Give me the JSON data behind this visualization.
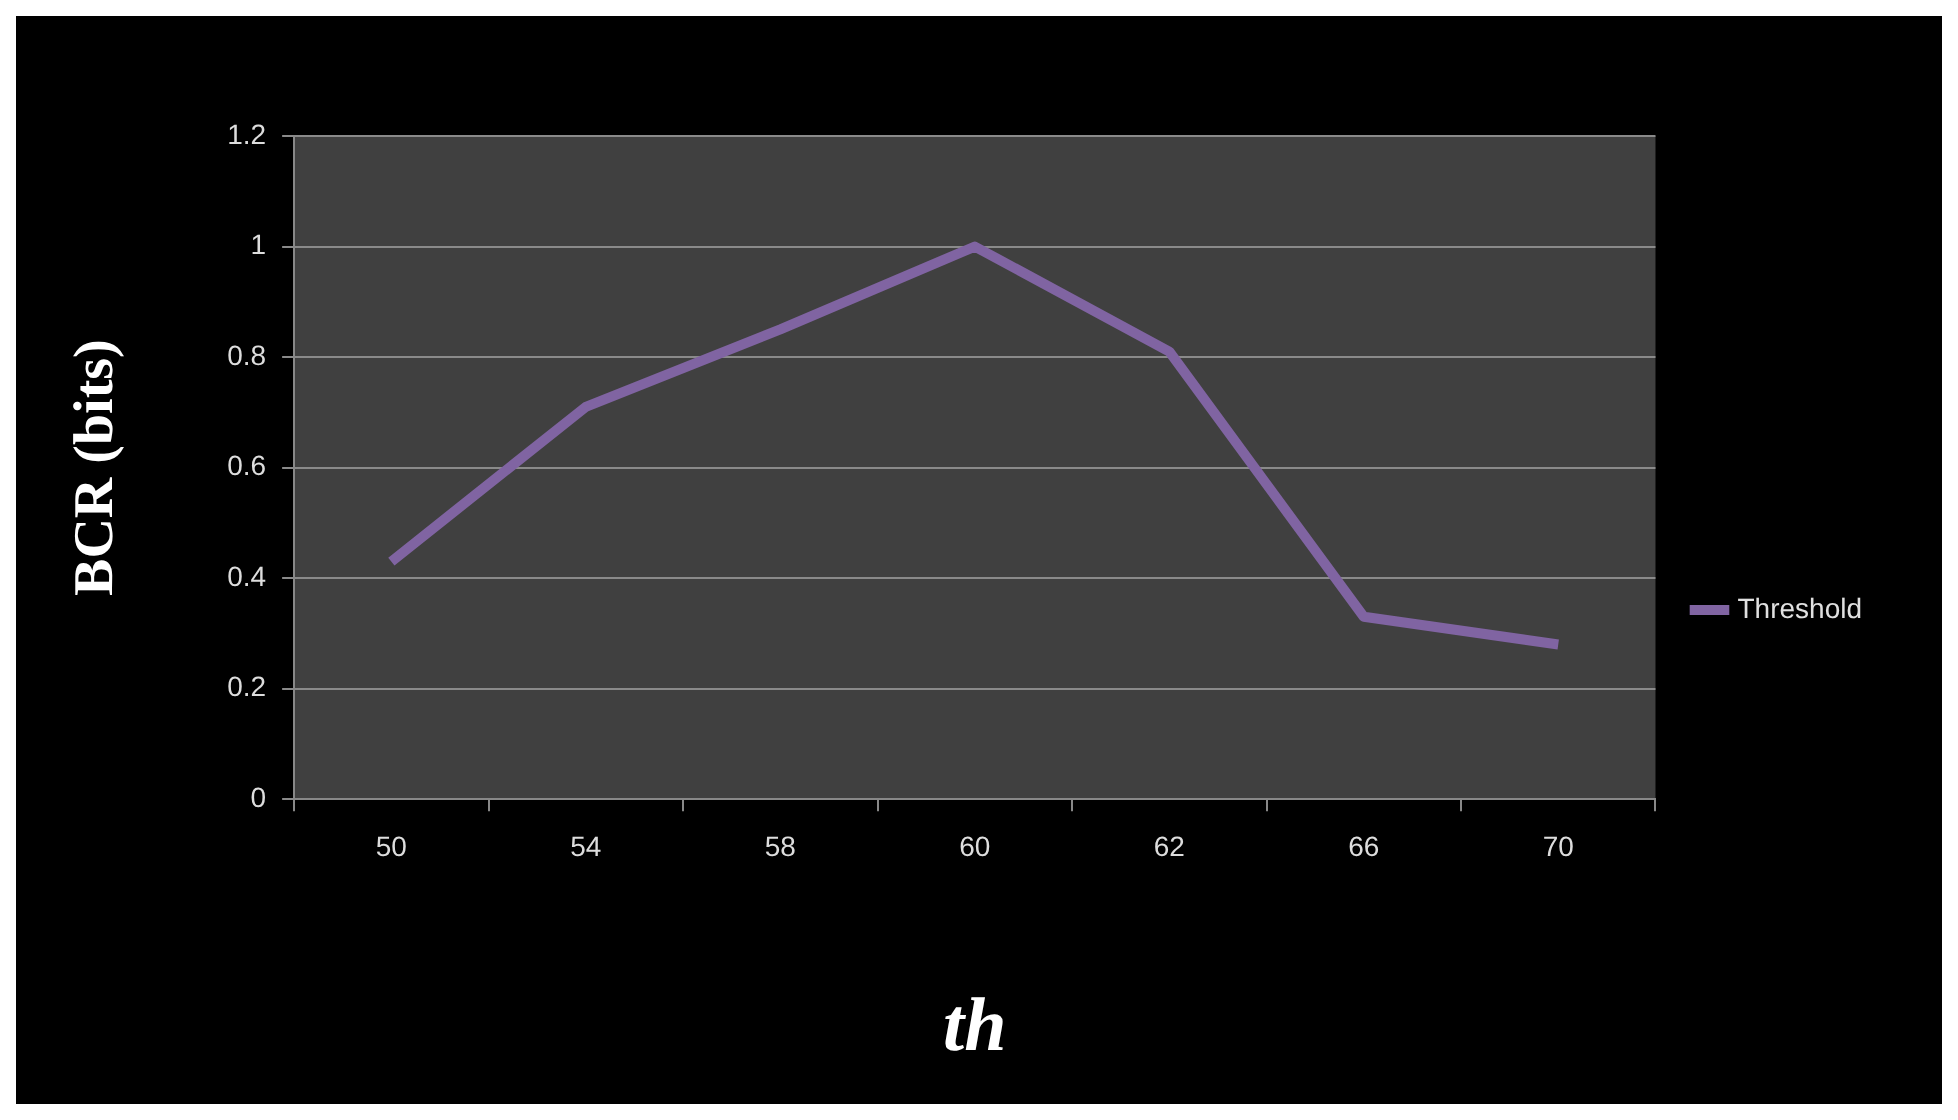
{
  "chart_data": {
    "type": "line",
    "xlabel": "th",
    "ylabel": "BCR (bits)",
    "categories": [
      "50",
      "54",
      "58",
      "60",
      "62",
      "66",
      "70"
    ],
    "series": [
      {
        "name": "Threshold",
        "color": "#8064a2",
        "values": [
          0.43,
          0.71,
          0.85,
          1.0,
          0.81,
          0.33,
          0.28
        ]
      }
    ],
    "ylim": [
      0,
      1.2
    ],
    "yticks": [
      0,
      {
        "value": 0.2,
        "label": "0.2"
      },
      {
        "value": 0.4,
        "label": "0.4"
      },
      {
        "value": 0.6,
        "label": "0.6"
      },
      {
        "value": 0.8,
        "label": "0.8"
      },
      1,
      {
        "value": 1.2,
        "label": "1.2"
      }
    ],
    "grid": "y",
    "legend": "right",
    "marker": "none"
  }
}
